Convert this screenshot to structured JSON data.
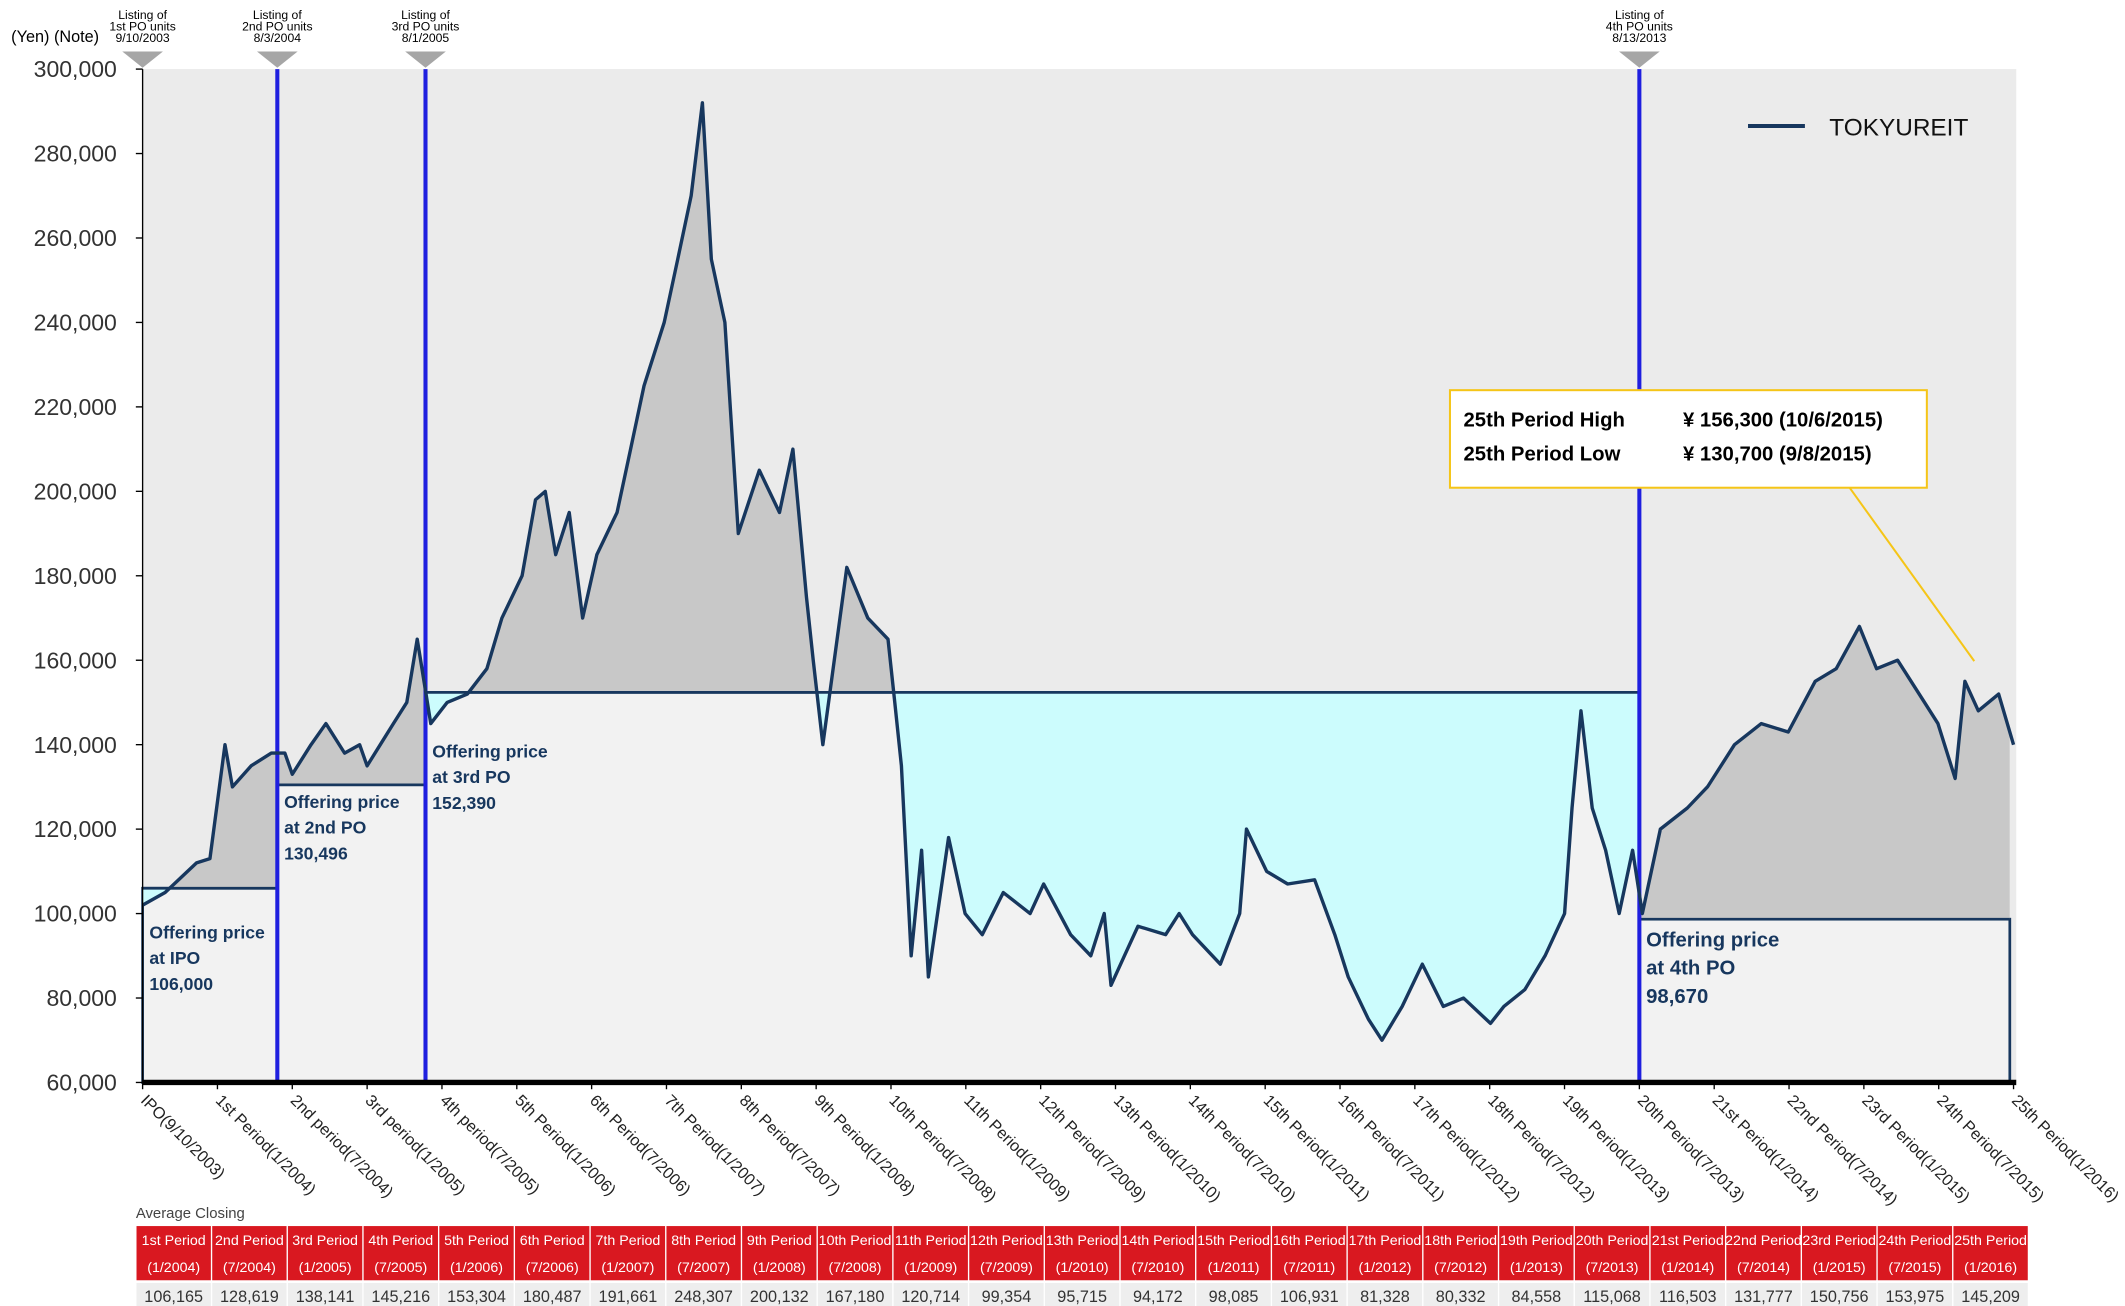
{
  "chart_data": {
    "type": "line",
    "y_label": "(Yen) (Note)",
    "xlim": [
      0,
      25
    ],
    "ylim": [
      60000,
      300000
    ],
    "yticks": [
      {
        "value": 60000,
        "label": "60,000"
      },
      {
        "value": 80000,
        "label": "80,000"
      },
      {
        "value": 100000,
        "label": "100,000"
      },
      {
        "value": 120000,
        "label": "120,000"
      },
      {
        "value": 140000,
        "label": "140,000"
      },
      {
        "value": 160000,
        "label": "160,000"
      },
      {
        "value": 180000,
        "label": "180,000"
      },
      {
        "value": 200000,
        "label": "200,000"
      },
      {
        "value": 220000,
        "label": "220,000"
      },
      {
        "value": 240000,
        "label": "240,000"
      },
      {
        "value": 260000,
        "label": "260,000"
      },
      {
        "value": 280000,
        "label": "280,000"
      },
      {
        "value": 300000,
        "label": "300,000"
      }
    ],
    "xticks": [
      {
        "value": 0,
        "label": "IPO(9/10/2003)"
      },
      {
        "value": 1,
        "label": "1st Period(1/2004)"
      },
      {
        "value": 2,
        "label": "2nd period(7/2004)"
      },
      {
        "value": 3,
        "label": "3rd period(1/2005)"
      },
      {
        "value": 4,
        "label": "4th period(7/2005)"
      },
      {
        "value": 5,
        "label": "5th Period(1/2006)"
      },
      {
        "value": 6,
        "label": "6th Period(7/2006)"
      },
      {
        "value": 7,
        "label": "7th Period(1/2007)"
      },
      {
        "value": 8,
        "label": "8th Period(7/2007)"
      },
      {
        "value": 9,
        "label": "9th Period(1/2008)"
      },
      {
        "value": 10,
        "label": "10th Period(7/2008)"
      },
      {
        "value": 11,
        "label": "11th Period(1/2009)"
      },
      {
        "value": 12,
        "label": "12th Period(7/2009)"
      },
      {
        "value": 13,
        "label": "13th Period(1/2010)"
      },
      {
        "value": 14,
        "label": "14th Period(7/2010)"
      },
      {
        "value": 15,
        "label": "15th Period(1/2011)"
      },
      {
        "value": 16,
        "label": "16th Period(7/2011)"
      },
      {
        "value": 17,
        "label": "17th Period(1/2012)"
      },
      {
        "value": 18,
        "label": "18th Period(7/2012)"
      },
      {
        "value": 19,
        "label": "19th Period(1/2013)"
      },
      {
        "value": 20,
        "label": "20th Period(7/2013)"
      },
      {
        "value": 21,
        "label": "21st Period(1/2014)"
      },
      {
        "value": 22,
        "label": "22nd Period(7/2014)"
      },
      {
        "value": 23,
        "label": "23rd Period(1/2015)"
      },
      {
        "value": 24,
        "label": "24th Period(7/2015)"
      },
      {
        "value": 25,
        "label": "25th Period(1/2016)"
      }
    ],
    "x": [
      0,
      0.3,
      0.72,
      0.9,
      1.1,
      1.2,
      1.45,
      1.72,
      1.9,
      2.0,
      2.25,
      2.45,
      2.7,
      2.9,
      3.0,
      3.35,
      3.53,
      3.67,
      3.76,
      3.85,
      4.07,
      4.34,
      4.6,
      4.8,
      5.07,
      5.25,
      5.38,
      5.52,
      5.7,
      5.88,
      6.07,
      6.34,
      6.52,
      6.7,
      6.97,
      7.15,
      7.33,
      7.48,
      7.6,
      7.78,
      7.96,
      8.24,
      8.51,
      8.69,
      8.87,
      8.96,
      9.09,
      9.41,
      9.69,
      9.96,
      10.05,
      10.14,
      10.27,
      10.41,
      10.5,
      10.77,
      10.99,
      11.22,
      11.5,
      11.86,
      12.04,
      12.4,
      12.67,
      12.85,
      12.94,
      13.12,
      13.3,
      13.67,
      13.85,
      14.03,
      14.4,
      14.66,
      14.75,
      15.02,
      15.3,
      15.66,
      15.93,
      16.11,
      16.38,
      16.56,
      16.83,
      17.1,
      17.38,
      17.65,
      18.01,
      18.19,
      18.47,
      18.74,
      19.0,
      19.1,
      19.22,
      19.37,
      19.55,
      19.73,
      19.91,
      20.04,
      20.28,
      20.64,
      20.91,
      21.27,
      21.63,
      21.99,
      22.35,
      22.63,
      22.94,
      23.17,
      23.45,
      23.81,
      23.99,
      24.22,
      24.35,
      24.53,
      24.8,
      25.0
    ],
    "series": [
      {
        "name": "TOKYUREIT",
        "color": "#17375e",
        "values": [
          102000,
          105000,
          112000,
          113000,
          140000,
          130000,
          135000,
          138000,
          138000,
          133000,
          140000,
          145000,
          138000,
          140000,
          135000,
          145000,
          150000,
          165000,
          155000,
          145000,
          150000,
          152000,
          158000,
          170000,
          180000,
          198000,
          200000,
          185000,
          195000,
          170000,
          185000,
          195000,
          210000,
          225000,
          240000,
          255000,
          270000,
          292000,
          255000,
          240000,
          190000,
          205000,
          195000,
          210000,
          175000,
          160000,
          140000,
          182000,
          170000,
          165000,
          150000,
          135000,
          90000,
          115000,
          85000,
          118000,
          100000,
          95000,
          105000,
          100000,
          107000,
          95000,
          90000,
          100000,
          83000,
          90000,
          97000,
          95000,
          100000,
          95000,
          88000,
          100000,
          120000,
          110000,
          107000,
          108000,
          95000,
          85000,
          75000,
          70000,
          78000,
          88000,
          78000,
          80000,
          74000,
          78000,
          82000,
          90000,
          100000,
          125000,
          148000,
          125000,
          115000,
          100000,
          115000,
          100000,
          120000,
          125000,
          130000,
          140000,
          145000,
          143000,
          155000,
          158000,
          168000,
          158000,
          160000,
          150000,
          145000,
          132000,
          155000,
          148000,
          152000,
          140000
        ]
      }
    ],
    "offerings": [
      {
        "text": [
          "Offering price",
          "at IPO"
        ],
        "value": 106000,
        "value_label": "106,000",
        "start": 0,
        "end": 1.8
      },
      {
        "text": [
          "Offering price",
          "at 2nd PO"
        ],
        "value": 130496,
        "value_label": "130,496",
        "start": 1.8,
        "end": 3.78
      },
      {
        "text": [
          "Offering price",
          "at 3rd PO"
        ],
        "value": 152390,
        "value_label": "152,390",
        "start": 3.78,
        "end": 20.0
      },
      {
        "text": [
          "Offering price",
          "at 4th PO"
        ],
        "value": 98670,
        "value_label": "98,670",
        "start": 20.0,
        "end": 24.95
      }
    ],
    "listings": [
      {
        "text": [
          "Listing of",
          "1st PO units",
          "9/10/2003"
        ],
        "x": 0
      },
      {
        "text": [
          "Listing of",
          "2nd PO units",
          "8/3/2004"
        ],
        "x": 1.8
      },
      {
        "text": [
          "Listing of",
          "3rd PO units",
          "8/1/2005"
        ],
        "x": 3.78
      },
      {
        "text": [
          "Listing of",
          "4th PO units",
          "8/13/2013"
        ],
        "x": 20.0
      }
    ],
    "annotation": {
      "rows": [
        [
          "25th Period High",
          "¥ 156,300 (10/6/2015)"
        ],
        [
          "25th Period Low",
          "¥ 130,700   (9/8/2015)"
        ]
      ]
    },
    "legend": "top-right"
  },
  "table": {
    "title": "Average Closing",
    "columns": [
      {
        "period": "1st Period",
        "date": "(1/2004)",
        "value": "106,165"
      },
      {
        "period": "2nd Period",
        "date": "(7/2004)",
        "value": "128,619"
      },
      {
        "period": "3rd Period",
        "date": "(1/2005)",
        "value": "138,141"
      },
      {
        "period": "4th Period",
        "date": "(7/2005)",
        "value": "145,216"
      },
      {
        "period": "5th Period",
        "date": "(1/2006)",
        "value": "153,304"
      },
      {
        "period": "6th Period",
        "date": "(7/2006)",
        "value": "180,487"
      },
      {
        "period": "7th Period",
        "date": "(1/2007)",
        "value": "191,661"
      },
      {
        "period": "8th Period",
        "date": "(7/2007)",
        "value": "248,307"
      },
      {
        "period": "9th Period",
        "date": "(1/2008)",
        "value": "200,132"
      },
      {
        "period": "10th Period",
        "date": "(7/2008)",
        "value": "167,180"
      },
      {
        "period": "11th Period",
        "date": "(1/2009)",
        "value": "120,714"
      },
      {
        "period": "12th Period",
        "date": "(7/2009)",
        "value": "99,354"
      },
      {
        "period": "13th Period",
        "date": "(1/2010)",
        "value": "95,715"
      },
      {
        "period": "14th Period",
        "date": "(7/2010)",
        "value": "94,172"
      },
      {
        "period": "15th Period",
        "date": "(1/2011)",
        "value": "98,085"
      },
      {
        "period": "16th Period",
        "date": "(7/2011)",
        "value": "106,931"
      },
      {
        "period": "17th Period",
        "date": "(1/2012)",
        "value": "81,328"
      },
      {
        "period": "18th Period",
        "date": "(7/2012)",
        "value": "80,332"
      },
      {
        "period": "19th Period",
        "date": "(1/2013)",
        "value": "84,558"
      },
      {
        "period": "20th Period",
        "date": "(7/2013)",
        "value": "115,068"
      },
      {
        "period": "21st Period",
        "date": "(1/2014)",
        "value": "116,503"
      },
      {
        "period": "22nd Period",
        "date": "(7/2014)",
        "value": "131,777"
      },
      {
        "period": "23rd Period",
        "date": "(1/2015)",
        "value": "150,756"
      },
      {
        "period": "24th Period",
        "date": "(7/2015)",
        "value": "153,975"
      },
      {
        "period": "25th Period",
        "date": "(1/2016)",
        "value": "145,209"
      }
    ]
  }
}
